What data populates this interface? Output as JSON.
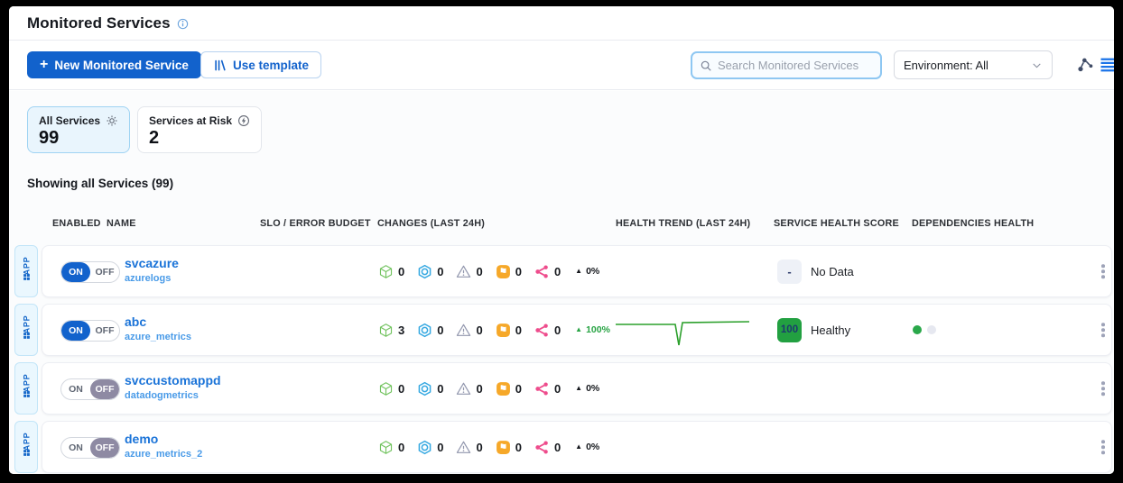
{
  "header": {
    "title": "Monitored Services"
  },
  "toolbar": {
    "new_service_button": {
      "icon": "+",
      "label": "New Monitored Service"
    },
    "use_template_button": {
      "label": "Use template"
    },
    "search": {
      "placeholder": "Search Monitored Services",
      "value": ""
    },
    "environment_select": {
      "value": "Environment: All"
    }
  },
  "filter_cards": [
    {
      "label": "All Services",
      "count": "99",
      "icon": "gear-icon",
      "selected": true
    },
    {
      "label": "Services at Risk",
      "count": "2",
      "icon": "bolt-circle-icon",
      "selected": false
    }
  ],
  "summary": "Showing all Services (99)",
  "table": {
    "columns": [
      "ENABLED",
      "NAME",
      "SLO / ERROR BUDGET",
      "CHANGES (LAST 24H)",
      "HEALTH TREND (LAST 24H)",
      "SERVICE HEALTH SCORE",
      "DEPENDENCIES HEALTH"
    ],
    "toggle": {
      "on": "ON",
      "off": "OFF"
    },
    "change_icons": [
      "cube-icon",
      "hexagon-icon",
      "alert-triangle-icon",
      "flag-icon",
      "share-icon"
    ],
    "rows": [
      {
        "tag": "APP",
        "enabled": true,
        "name": "svcazure",
        "integration": "azurelogs",
        "changes": [
          "0",
          "0",
          "0",
          "0",
          "0"
        ],
        "delta": "0%",
        "delta_positive": false,
        "trend": null,
        "score": "-",
        "score_label": "No Data",
        "score_state": "nodata",
        "dependencies": []
      },
      {
        "tag": "APP",
        "enabled": true,
        "name": "abc",
        "integration": "azure_metrics",
        "changes": [
          "3",
          "0",
          "0",
          "0",
          "0"
        ],
        "delta": "100%",
        "delta_positive": true,
        "trend": [
          [
            1,
            13
          ],
          [
            60,
            13
          ],
          [
            67,
            13
          ],
          [
            71,
            36
          ],
          [
            75,
            11
          ],
          [
            149,
            10
          ]
        ],
        "score": "100",
        "score_label": "Healthy",
        "score_state": "healthy",
        "dependencies": [
          "healthy",
          "unknown"
        ]
      },
      {
        "tag": "APP",
        "enabled": false,
        "name": "svccustomappd",
        "integration": "datadogmetrics",
        "changes": [
          "0",
          "0",
          "0",
          "0",
          "0"
        ],
        "delta": "0%",
        "delta_positive": false,
        "trend": null,
        "score": "",
        "score_label": "",
        "score_state": "none",
        "dependencies": []
      },
      {
        "tag": "APP",
        "enabled": false,
        "name": "demo",
        "integration": "azure_metrics_2",
        "changes": [
          "0",
          "0",
          "0",
          "0",
          "0"
        ],
        "delta": "0%",
        "delta_positive": false,
        "trend": null,
        "score": "",
        "score_label": "",
        "score_state": "none",
        "dependencies": []
      }
    ]
  },
  "colors": {
    "accent_blue": "#1262cc",
    "link_blue": "#1a73d8",
    "cube_green": "#72c35f",
    "hexagon_blue": "#35a8e1",
    "alert_gray": "#9196ad",
    "flag_orange": "#f6a829",
    "share_pink": "#ee4c8c",
    "trend_green": "#2ca02c",
    "healthy_green": "#22a041",
    "delta_up_green": "#27a343",
    "toggle_off_gray": "#8e8aa3"
  }
}
